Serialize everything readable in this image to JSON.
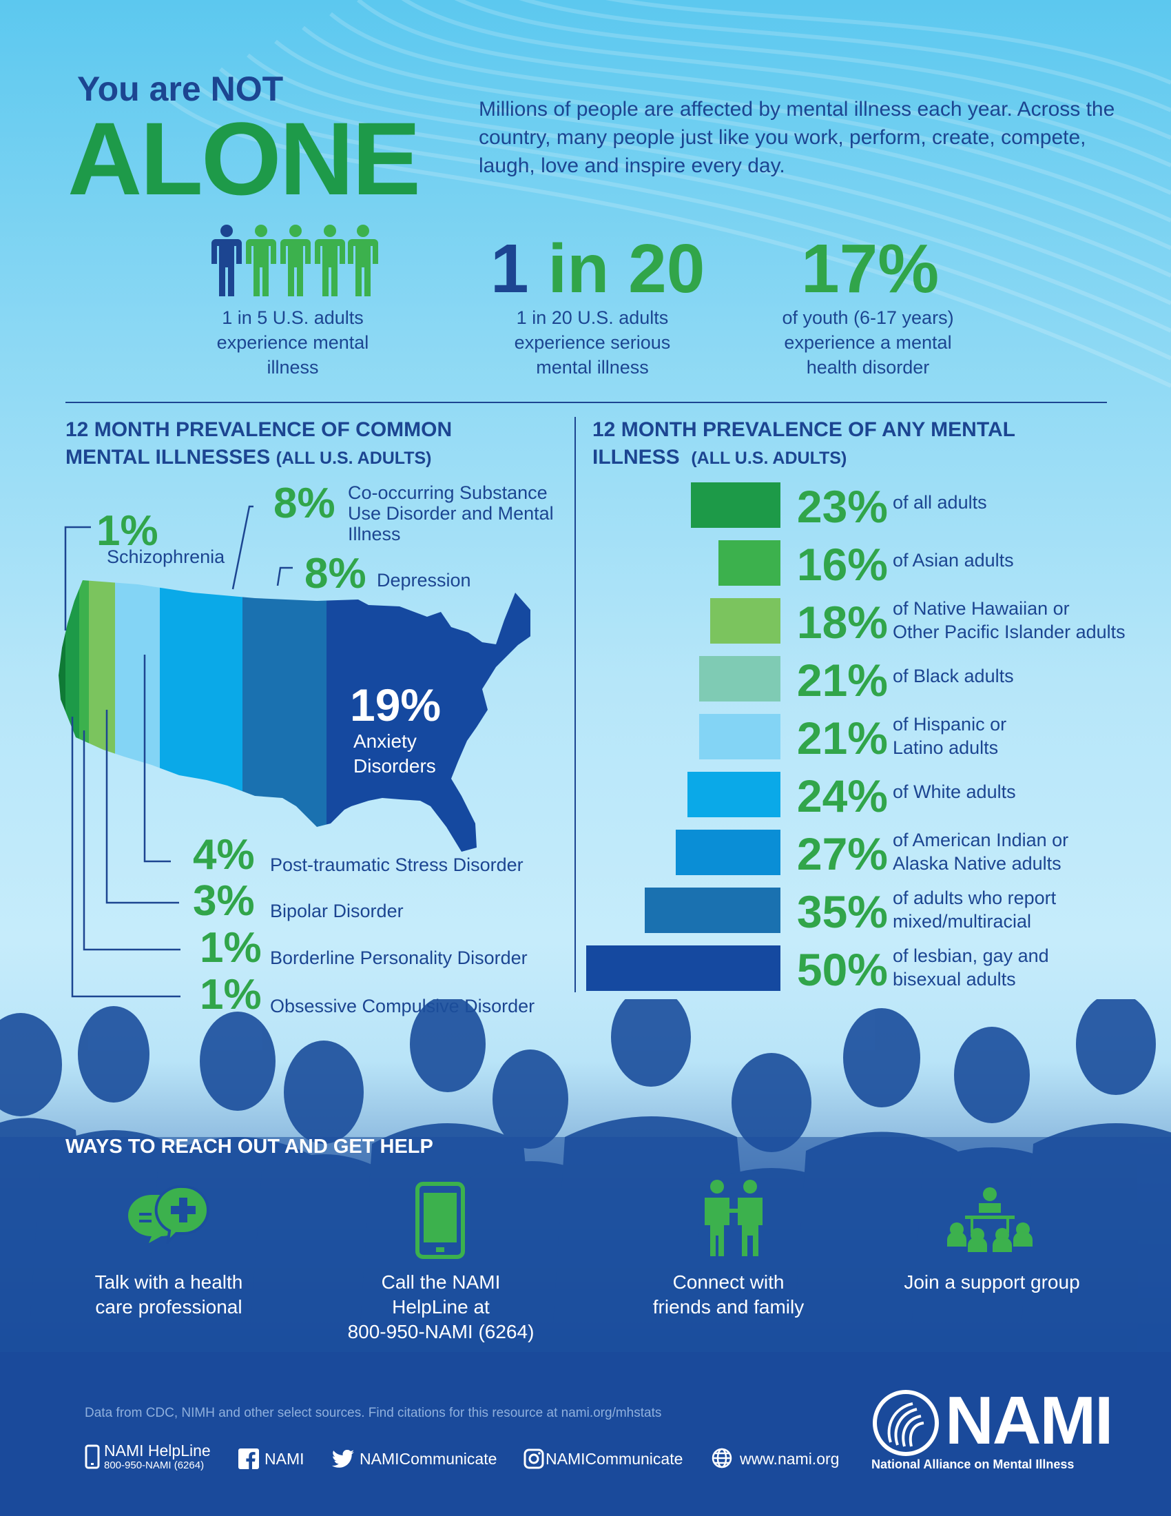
{
  "header": {
    "title_small": "You are NOT",
    "title_big": "ALONE",
    "intro": "Millions of people are affected by mental illness each year. Across the country, many people just like you work, perform, create, compete, laugh, love and inspire every day."
  },
  "stats": [
    {
      "big": "",
      "caption": "1 in 5 U.S. adults experience mental illness",
      "icon": "people-icon"
    },
    {
      "big_part1": "1",
      "big_part2": "in 20",
      "caption": "1 in 20 U.S. adults experience serious mental illness"
    },
    {
      "big": "17%",
      "caption": "of youth (6-17 years) experience a mental health disorder"
    }
  ],
  "left_section": {
    "title_line1": "12 MONTH PREVALENCE OF COMMON",
    "title_line2": "MENTAL ILLNESSES",
    "title_suffix": "(ALL U.S. ADULTS)",
    "items": [
      {
        "pct": "1%",
        "label": "Schizophrenia"
      },
      {
        "pct": "8%",
        "label": "Co-occurring Substance Use Disorder and Mental Illness"
      },
      {
        "pct": "8%",
        "label": "Depression"
      },
      {
        "pct": "19%",
        "label": "Anxiety Disorders"
      },
      {
        "pct": "4%",
        "label": "Post-traumatic Stress Disorder"
      },
      {
        "pct": "3%",
        "label": "Bipolar Disorder"
      },
      {
        "pct": "1%",
        "label": "Borderline Personality Disorder"
      },
      {
        "pct": "1%",
        "label": "Obsessive Compulsive Disorder"
      }
    ]
  },
  "right_section": {
    "title_line1": "12 MONTH PREVALENCE OF ANY MENTAL",
    "title_line2": "ILLNESS",
    "title_suffix": "(ALL U.S. ADULTS)"
  },
  "chart_data": {
    "type": "bar",
    "categories": [
      "of all adults",
      "of Asian adults",
      "of Native Hawaiian or Other Pacific Islander adults",
      "of Black adults",
      "of Hispanic or Latino adults",
      "of White adults",
      "of American Indian or Alaska Native adults",
      "of adults who report mixed/multiracial",
      "of lesbian, gay and bisexual adults"
    ],
    "label_lines": [
      [
        "of all adults"
      ],
      [
        "of Asian adults"
      ],
      [
        "of Native Hawaiian or",
        "Other Pacific Islander adults"
      ],
      [
        "of Black adults"
      ],
      [
        "of Hispanic or",
        "Latino adults"
      ],
      [
        "of White adults"
      ],
      [
        "of American Indian or",
        "Alaska Native adults"
      ],
      [
        "of adults who report",
        "mixed/multiracial"
      ],
      [
        "of lesbian, gay and",
        "bisexual adults"
      ]
    ],
    "values": [
      23,
      16,
      18,
      21,
      21,
      24,
      27,
      35,
      50
    ],
    "value_labels": [
      "23%",
      "16%",
      "18%",
      "21%",
      "21%",
      "24%",
      "27%",
      "35%",
      "50%"
    ],
    "colors": [
      "#1d9a48",
      "#3cb14d",
      "#7bc45e",
      "#7fcbb4",
      "#83d4f5",
      "#0aa9e8",
      "#0a8ed6",
      "#1a71b0",
      "#1549a0"
    ]
  },
  "help": {
    "title": "WAYS TO REACH OUT AND GET HELP",
    "items": [
      {
        "label_line1": "Talk with a health",
        "label_line2": "care professional",
        "label_line3": ""
      },
      {
        "label_line1": "Call the NAMI",
        "label_line2": "HelpLine at",
        "label_line3": "800-950-NAMI (6264)"
      },
      {
        "label_line1": "Connect with",
        "label_line2": "friends and family",
        "label_line3": ""
      },
      {
        "label_line1": "Join a support group",
        "label_line2": "",
        "label_line3": ""
      }
    ]
  },
  "footer": {
    "note": "Data from CDC, NIMH and other select sources. Find citations for this resource at nami.org/mhstats",
    "helpline_title": "NAMI HelpLine",
    "helpline_number": "800-950-NAMI (6264)",
    "facebook": "NAMI",
    "twitter": "NAMICommunicate",
    "instagram": "NAMICommunicate",
    "website": "www.nami.org",
    "logo_text": "NAMI",
    "logo_subtitle": "National Alliance on Mental Illness"
  }
}
